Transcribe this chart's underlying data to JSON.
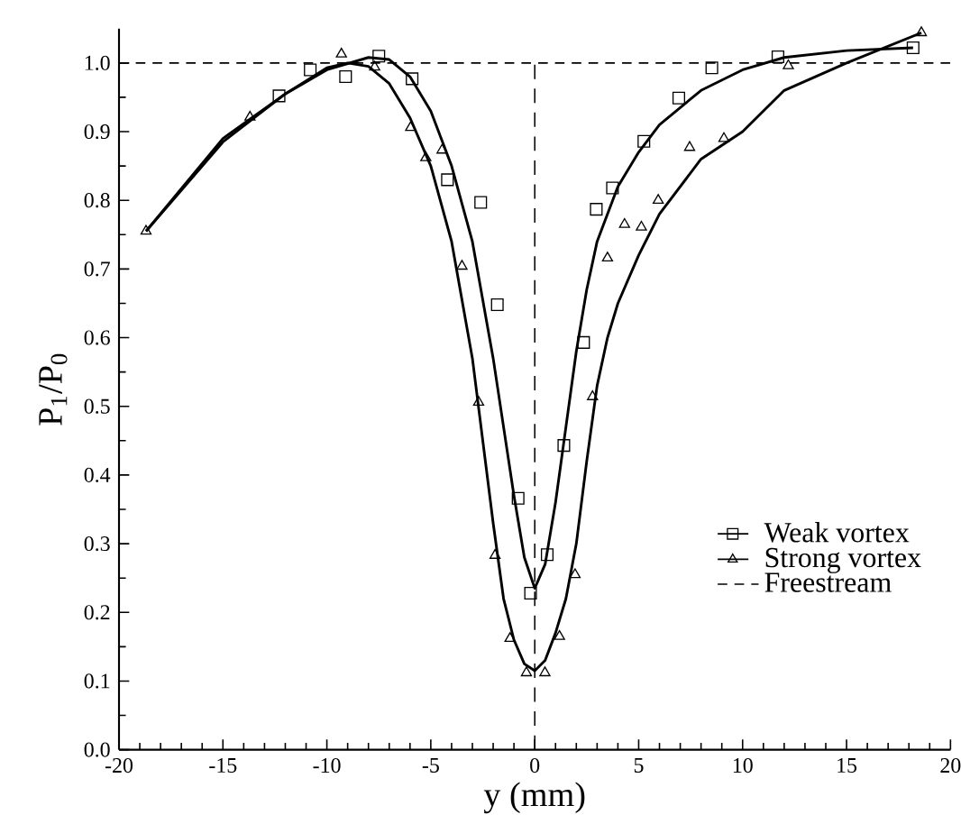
{
  "chart_data": {
    "type": "line",
    "xlabel": "y (mm)",
    "ylabel": "P$_{1}$/P$_{0}$",
    "xlim": [
      -20,
      20
    ],
    "ylim": [
      0,
      1.05
    ],
    "xticks": [
      -20,
      -15,
      -10,
      -5,
      0,
      5,
      10,
      15,
      20
    ],
    "yticks": [
      {
        "value": 0,
        "label": "0.0"
      },
      0.1,
      0.2,
      0.3,
      0.4,
      0.5,
      0.6,
      0.7,
      0.8,
      0.9,
      {
        "value": 1,
        "label": "1.0"
      }
    ],
    "legend": "bottom right",
    "grid": false,
    "series": [
      {
        "name": "Weak vortex",
        "type": "scatter",
        "marker": "square",
        "color": "#000000",
        "x": [
          -12.3,
          -10.8,
          -9.1,
          -7.5,
          -5.9,
          -4.2,
          -2.6,
          -1.8,
          -0.8,
          -0.2,
          0.6,
          1.4,
          2.35,
          2.96,
          3.74,
          5.25,
          6.93,
          8.52,
          11.7,
          18.2
        ],
        "values": [
          0.952,
          0.99,
          0.98,
          1.01,
          0.977,
          0.83,
          0.797,
          0.648,
          0.366,
          0.228,
          0.284,
          0.443,
          0.593,
          0.787,
          0.818,
          0.886,
          0.949,
          0.993,
          1.009,
          1.022
        ]
      },
      {
        "name": "Strong vortex",
        "type": "scatter",
        "marker": "triangle",
        "color": "#000000",
        "x": [
          -18.7,
          -13.7,
          -9.3,
          -7.7,
          -5.97,
          -5.24,
          -4.46,
          -3.5,
          -2.7,
          -1.91,
          -1.19,
          -0.4,
          0.49,
          1.19,
          1.94,
          2.78,
          3.5,
          4.32,
          5.13,
          5.94,
          7.45,
          9.1,
          12.2,
          18.6
        ],
        "values": [
          0.755,
          0.921,
          1.013,
          0.994,
          0.906,
          0.862,
          0.873,
          0.704,
          0.506,
          0.283,
          0.162,
          0.112,
          0.112,
          0.165,
          0.255,
          0.514,
          0.716,
          0.765,
          0.761,
          0.8,
          0.877,
          0.89,
          0.996,
          1.044
        ]
      },
      {
        "color": "#000000",
        "line_style": "solid",
        "x": [
          -18.7,
          -15,
          -12,
          -10,
          -8,
          -7,
          -6,
          -5,
          -4,
          -3,
          -2,
          -1,
          -0.5,
          0,
          0.5,
          1,
          1.5,
          2,
          2.5,
          3,
          4,
          5,
          6,
          8,
          10,
          12,
          15,
          18.2
        ],
        "values": [
          0.755,
          0.89,
          0.955,
          0.99,
          1.008,
          1.005,
          0.98,
          0.93,
          0.85,
          0.74,
          0.57,
          0.37,
          0.28,
          0.235,
          0.27,
          0.36,
          0.47,
          0.58,
          0.67,
          0.74,
          0.82,
          0.87,
          0.91,
          0.96,
          0.99,
          1.008,
          1.018,
          1.022
        ]
      },
      {
        "color": "#000000",
        "line_style": "solid",
        "x": [
          -18.7,
          -15,
          -12,
          -10,
          -9,
          -8,
          -7,
          -6,
          -5,
          -4,
          -3,
          -2,
          -1.5,
          -1,
          -0.5,
          0,
          0.5,
          1,
          1.5,
          2,
          2.5,
          3,
          3.5,
          4,
          5,
          6,
          8,
          10,
          12,
          15,
          18.6
        ],
        "values": [
          0.755,
          0.885,
          0.955,
          0.993,
          1.0,
          0.995,
          0.97,
          0.92,
          0.85,
          0.74,
          0.57,
          0.33,
          0.22,
          0.16,
          0.125,
          0.115,
          0.13,
          0.17,
          0.22,
          0.3,
          0.42,
          0.53,
          0.6,
          0.65,
          0.72,
          0.78,
          0.86,
          0.9,
          0.96,
          1.0,
          1.044
        ]
      },
      {
        "name": "Freestream",
        "color": "#000000",
        "line_style": "dashed",
        "x": [
          -20,
          20
        ],
        "values": [
          1.0,
          1.0
        ]
      }
    ],
    "ref_lines": [
      {
        "axis": "x",
        "value": 0,
        "color": "#000000",
        "line_style": "dashed"
      }
    ]
  }
}
